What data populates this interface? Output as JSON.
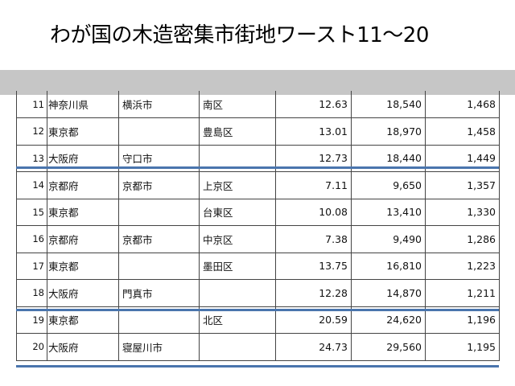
{
  "slide": {
    "title": "わが国の木造密集市街地ワースト11〜20"
  },
  "table": {
    "rows": [
      {
        "no": "11",
        "pref": "神奈川県",
        "city": "横浜市",
        "ward": "南区",
        "area": "12.63",
        "population": "18,540",
        "density": "1,468"
      },
      {
        "no": "12",
        "pref": "東京都",
        "city": "",
        "ward": "豊島区",
        "area": "13.01",
        "population": "18,970",
        "density": "1,458"
      },
      {
        "no": "13",
        "pref": "大阪府",
        "city": "守口市",
        "ward": "",
        "area": "12.73",
        "population": "18,440",
        "density": "1,449"
      },
      {
        "no": "14",
        "pref": "京都府",
        "city": "京都市",
        "ward": "上京区",
        "area": "7.11",
        "population": "9,650",
        "density": "1,357"
      },
      {
        "no": "15",
        "pref": "東京都",
        "city": "",
        "ward": "台東区",
        "area": "10.08",
        "population": "13,410",
        "density": "1,330"
      },
      {
        "no": "16",
        "pref": "京都府",
        "city": "京都市",
        "ward": "中京区",
        "area": "7.38",
        "population": "9,490",
        "density": "1,286"
      },
      {
        "no": "17",
        "pref": "東京都",
        "city": "",
        "ward": "墨田区",
        "area": "13.75",
        "population": "16,810",
        "density": "1,223"
      },
      {
        "no": "18",
        "pref": "大阪府",
        "city": "門真市",
        "ward": "",
        "area": "12.28",
        "population": "14,870",
        "density": "1,211"
      },
      {
        "no": "19",
        "pref": "東京都",
        "city": "",
        "ward": "北区",
        "area": "20.59",
        "population": "24,620",
        "density": "1,196"
      },
      {
        "no": "20",
        "pref": "大阪府",
        "city": "寝屋川市",
        "ward": "",
        "area": "24.73",
        "population": "29,560",
        "density": "1,195"
      }
    ]
  },
  "colors": {
    "highlight_line": "#4a75ad",
    "band": "#c6c6c6"
  }
}
